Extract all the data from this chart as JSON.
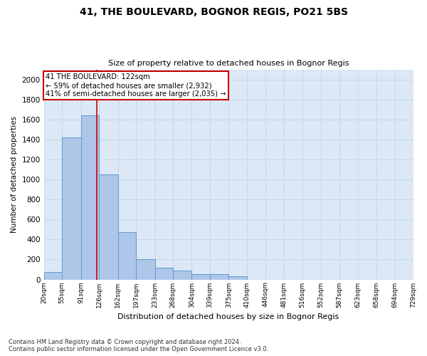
{
  "title": "41, THE BOULEVARD, BOGNOR REGIS, PO21 5BS",
  "subtitle": "Size of property relative to detached houses in Bognor Regis",
  "xlabel": "Distribution of detached houses by size in Bognor Regis",
  "ylabel": "Number of detached properties",
  "footnote": "Contains HM Land Registry data © Crown copyright and database right 2024.\nContains public sector information licensed under the Open Government Licence v3.0.",
  "bar_edges": [
    20,
    55,
    91,
    126,
    162,
    197,
    233,
    268,
    304,
    339,
    375,
    410,
    446,
    481,
    516,
    552,
    587,
    623,
    658,
    694,
    729
  ],
  "bar_heights": [
    75,
    1420,
    1640,
    1050,
    470,
    200,
    115,
    90,
    55,
    50,
    30,
    0,
    0,
    0,
    0,
    0,
    0,
    0,
    0,
    0
  ],
  "bar_color": "#aec6e8",
  "bar_edge_color": "#5b9bd5",
  "grid_color": "#c8d8ea",
  "bg_color": "#dce8f5",
  "property_size": 122,
  "vline_color": "#cc0000",
  "annotation_text": "41 THE BOULEVARD: 122sqm\n← 59% of detached houses are smaller (2,932)\n41% of semi-detached houses are larger (2,035) →",
  "annotation_box_color": "#cc0000",
  "ylim": [
    0,
    2100
  ],
  "yticks": [
    0,
    200,
    400,
    600,
    800,
    1000,
    1200,
    1400,
    1600,
    1800,
    2000
  ]
}
